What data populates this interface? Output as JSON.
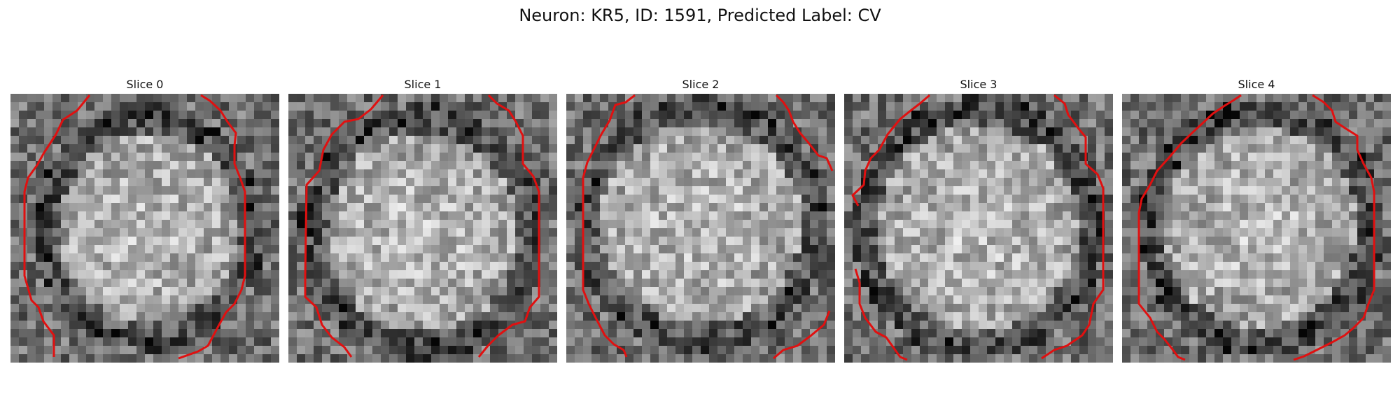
{
  "figure": {
    "title": "Neuron: KR5, ID: 1591, Predicted Label: CV"
  },
  "slices": [
    {
      "title": "Slice 0"
    },
    {
      "title": "Slice 1"
    },
    {
      "title": "Slice 2"
    },
    {
      "title": "Slice 3"
    },
    {
      "title": "Slice 4"
    }
  ],
  "colors": {
    "contour": "#e01010"
  }
}
